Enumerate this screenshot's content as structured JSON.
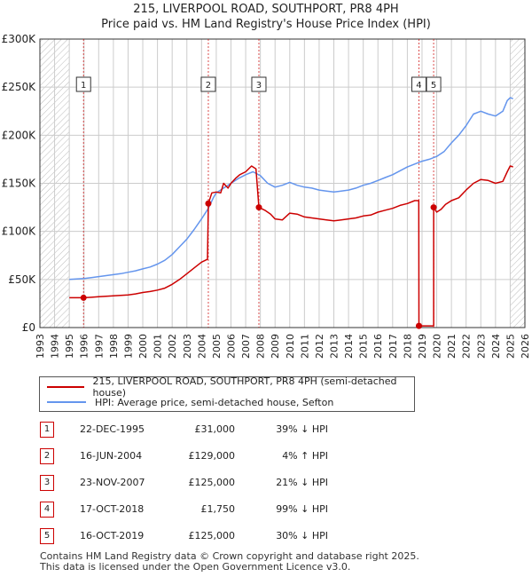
{
  "title": "215, LIVERPOOL ROAD, SOUTHPORT, PR8 4PH",
  "subtitle": "Price paid vs. HM Land Registry's House Price Index (HPI)",
  "colors": {
    "property": "#cc0000",
    "hpi": "#6495ed",
    "grid": "#cccccc",
    "hatch": "#bbbbbb",
    "marker_line": "#cc0000"
  },
  "legend": {
    "property": "215, LIVERPOOL ROAD, SOUTHPORT, PR8 4PH (semi-detached house)",
    "hpi": "HPI: Average price, semi-detached house, Sefton"
  },
  "transactions": [
    {
      "num": "1",
      "date": "22-DEC-1995",
      "price": "£31,000",
      "hpi_diff": "39% ↓ HPI"
    },
    {
      "num": "2",
      "date": "16-JUN-2004",
      "price": "£129,000",
      "hpi_diff": "4% ↑ HPI"
    },
    {
      "num": "3",
      "date": "23-NOV-2007",
      "price": "£125,000",
      "hpi_diff": "21% ↓ HPI"
    },
    {
      "num": "4",
      "date": "17-OCT-2018",
      "price": "£1,750",
      "hpi_diff": "99% ↓ HPI"
    },
    {
      "num": "5",
      "date": "16-OCT-2019",
      "price": "£125,000",
      "hpi_diff": "30% ↓ HPI"
    }
  ],
  "footer": {
    "line1": "Contains HM Land Registry data © Crown copyright and database right 2025.",
    "line2": "This data is licensed under the Open Government Licence v3.0."
  },
  "chart_data": {
    "type": "line",
    "xlim": [
      1993,
      2026
    ],
    "ylim": [
      0,
      300000
    ],
    "x_ticks": [
      "1993",
      "1994",
      "1995",
      "1996",
      "1997",
      "1998",
      "1999",
      "2000",
      "2001",
      "2002",
      "2003",
      "2004",
      "2005",
      "2006",
      "2007",
      "2008",
      "2009",
      "2010",
      "2011",
      "2012",
      "2013",
      "2014",
      "2015",
      "2016",
      "2017",
      "2018",
      "2019",
      "2020",
      "2021",
      "2022",
      "2023",
      "2024",
      "2025",
      "2026"
    ],
    "y_ticks": [
      {
        "value": 0,
        "label": "£0"
      },
      {
        "value": 50000,
        "label": "£50K"
      },
      {
        "value": 100000,
        "label": "£100K"
      },
      {
        "value": 150000,
        "label": "£150K"
      },
      {
        "value": 200000,
        "label": "£200K"
      },
      {
        "value": 250000,
        "label": "£250K"
      },
      {
        "value": 300000,
        "label": "£300K"
      }
    ],
    "grid": true,
    "hatched_ranges": [
      [
        1993,
        1995.0
      ],
      [
        2025.0,
        2026
      ]
    ],
    "sales": [
      {
        "label": "1",
        "x": 1995.97,
        "y": 31000
      },
      {
        "label": "2",
        "x": 2004.46,
        "y": 129000
      },
      {
        "label": "3",
        "x": 2007.9,
        "y": 125000
      },
      {
        "label": "4",
        "x": 2018.79,
        "y": 1750
      },
      {
        "label": "5",
        "x": 2019.79,
        "y": 125000
      }
    ],
    "series": [
      {
        "name": "215, LIVERPOOL ROAD, SOUTHPORT, PR8 4PH (semi-detached house)",
        "points": [
          [
            1995.0,
            31000
          ],
          [
            1995.97,
            31000
          ],
          [
            1996.5,
            31500
          ],
          [
            1997,
            32000
          ],
          [
            1997.5,
            32500
          ],
          [
            1998,
            33000
          ],
          [
            1998.5,
            33500
          ],
          [
            1999,
            34000
          ],
          [
            1999.5,
            35000
          ],
          [
            2000,
            36500
          ],
          [
            2000.5,
            37500
          ],
          [
            2001,
            39000
          ],
          [
            2001.5,
            41000
          ],
          [
            2002,
            45000
          ],
          [
            2002.5,
            50000
          ],
          [
            2003,
            56000
          ],
          [
            2003.5,
            62000
          ],
          [
            2004,
            68000
          ],
          [
            2004.4,
            71000
          ],
          [
            2004.46,
            129000
          ],
          [
            2004.7,
            140000
          ],
          [
            2005,
            141000
          ],
          [
            2005.3,
            140000
          ],
          [
            2005.5,
            150000
          ],
          [
            2005.8,
            145000
          ],
          [
            2006,
            150000
          ],
          [
            2006.3,
            155000
          ],
          [
            2006.6,
            159000
          ],
          [
            2007,
            162000
          ],
          [
            2007.4,
            168000
          ],
          [
            2007.7,
            165000
          ],
          [
            2007.9,
            125000
          ],
          [
            2008.3,
            122000
          ],
          [
            2008.7,
            118000
          ],
          [
            2009,
            113000
          ],
          [
            2009.5,
            112000
          ],
          [
            2010,
            119000
          ],
          [
            2010.5,
            118000
          ],
          [
            2011,
            115000
          ],
          [
            2011.5,
            114000
          ],
          [
            2012,
            113000
          ],
          [
            2012.5,
            112000
          ],
          [
            2013,
            111000
          ],
          [
            2013.5,
            112000
          ],
          [
            2014,
            113000
          ],
          [
            2014.5,
            114000
          ],
          [
            2015,
            116000
          ],
          [
            2015.5,
            117000
          ],
          [
            2016,
            120000
          ],
          [
            2016.5,
            122000
          ],
          [
            2017,
            124000
          ],
          [
            2017.5,
            127000
          ],
          [
            2018,
            129000
          ],
          [
            2018.5,
            132000
          ],
          [
            2018.78,
            132000
          ],
          [
            2018.79,
            1750
          ],
          [
            2019.79,
            1750
          ],
          [
            2019.79,
            125000
          ],
          [
            2020,
            120000
          ],
          [
            2020.3,
            123000
          ],
          [
            2020.6,
            128000
          ],
          [
            2021,
            132000
          ],
          [
            2021.5,
            135000
          ],
          [
            2022,
            143000
          ],
          [
            2022.5,
            150000
          ],
          [
            2023,
            154000
          ],
          [
            2023.5,
            153000
          ],
          [
            2024,
            150000
          ],
          [
            2024.5,
            152000
          ],
          [
            2024.8,
            162000
          ],
          [
            2025,
            168000
          ],
          [
            2025.2,
            167000
          ]
        ]
      },
      {
        "name": "HPI: Average price, semi-detached house, Sefton",
        "points": [
          [
            1995.0,
            50000
          ],
          [
            1995.5,
            50500
          ],
          [
            1996,
            51000
          ],
          [
            1996.5,
            52000
          ],
          [
            1997,
            53000
          ],
          [
            1997.5,
            54000
          ],
          [
            1998,
            55000
          ],
          [
            1998.5,
            56000
          ],
          [
            1999,
            57500
          ],
          [
            1999.5,
            59000
          ],
          [
            2000,
            61000
          ],
          [
            2000.5,
            63000
          ],
          [
            2001,
            66000
          ],
          [
            2001.5,
            70000
          ],
          [
            2002,
            76000
          ],
          [
            2002.5,
            84000
          ],
          [
            2003,
            92000
          ],
          [
            2003.5,
            102000
          ],
          [
            2004,
            113000
          ],
          [
            2004.46,
            124000
          ],
          [
            2004.8,
            135000
          ],
          [
            2005,
            140000
          ],
          [
            2005.5,
            145000
          ],
          [
            2006,
            150000
          ],
          [
            2006.5,
            155000
          ],
          [
            2007,
            159000
          ],
          [
            2007.5,
            162000
          ],
          [
            2008,
            158000
          ],
          [
            2008.5,
            150000
          ],
          [
            2009,
            146000
          ],
          [
            2009.5,
            148000
          ],
          [
            2010,
            151000
          ],
          [
            2010.5,
            148000
          ],
          [
            2011,
            146000
          ],
          [
            2011.5,
            145000
          ],
          [
            2012,
            143000
          ],
          [
            2012.5,
            142000
          ],
          [
            2013,
            141000
          ],
          [
            2013.5,
            142000
          ],
          [
            2014,
            143000
          ],
          [
            2014.5,
            145000
          ],
          [
            2015,
            148000
          ],
          [
            2015.5,
            150000
          ],
          [
            2016,
            153000
          ],
          [
            2016.5,
            156000
          ],
          [
            2017,
            159000
          ],
          [
            2017.5,
            163000
          ],
          [
            2018,
            167000
          ],
          [
            2018.5,
            170000
          ],
          [
            2019,
            173000
          ],
          [
            2019.5,
            175000
          ],
          [
            2020,
            178000
          ],
          [
            2020.5,
            183000
          ],
          [
            2021,
            192000
          ],
          [
            2021.5,
            200000
          ],
          [
            2022,
            210000
          ],
          [
            2022.5,
            222000
          ],
          [
            2023,
            225000
          ],
          [
            2023.5,
            222000
          ],
          [
            2024,
            220000
          ],
          [
            2024.5,
            225000
          ],
          [
            2024.8,
            236000
          ],
          [
            2025,
            239000
          ],
          [
            2025.2,
            238000
          ]
        ]
      }
    ]
  }
}
